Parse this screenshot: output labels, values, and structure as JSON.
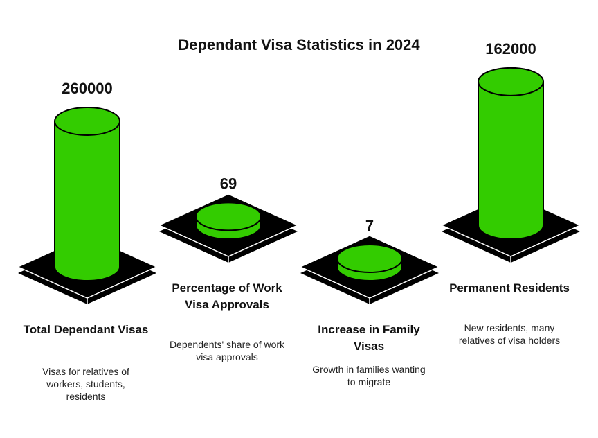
{
  "chart_data": {
    "type": "bar",
    "title": "Dependant Visa Statistics in 2024",
    "categories": [
      "Total Dependant Visas",
      "Percentage of Work Visa Approvals",
      "Increase in Family Visas",
      "Permanent Residents"
    ],
    "values": [
      260000,
      69,
      7,
      162000
    ],
    "value_labels": [
      "260000",
      "69",
      "7",
      "162000"
    ],
    "descriptions": [
      "Visas for relatives of workers, students, residents",
      "Dependents' share of work visa approvals",
      "Growth in families wanting to migrate",
      "New residents, many relatives of visa holders"
    ],
    "xlabel": "",
    "ylabel": "",
    "grid": false,
    "legend": "none"
  },
  "colors": {
    "bar_fill": "#33cc00",
    "bar_stroke": "#000000",
    "base_fill": "#000000",
    "base_edge": "#ffffff"
  }
}
